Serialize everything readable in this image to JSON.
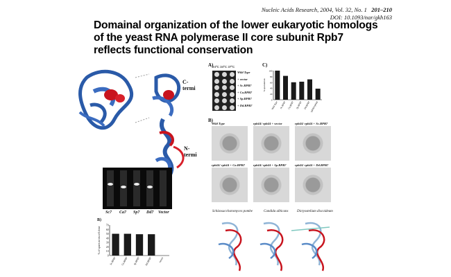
{
  "header": {
    "journal_line": "Nucleic Acids Research, 2004, Vol. 32, No. 1",
    "pages": "201–210",
    "doi": "DOI: 10.1093/nar/gkh163"
  },
  "title": "Domainal organization of the lower eukaryotic homologs of the yeast RNA polymerase II core subunit Rpb7 reflects functional conservation",
  "structure_panel": {
    "c_term": "C-termi",
    "n_term": "N-termi"
  },
  "panel_a": {
    "label": "A)",
    "temps": [
      "24ºC",
      "34ºC",
      "37ºC"
    ],
    "rows": [
      "Wild Type",
      "+ vector",
      "+ Sc.RPB7",
      "+ Ca.RPB7",
      "+ Sp.RPB7",
      "+ Dd.RPB7"
    ]
  },
  "panel_c": {
    "label": "C)",
    "ylabel": "% sporulation",
    "categories": [
      "Wild Type",
      "Sc.RPB7",
      "Ca.RPB7",
      "Sp.RPB7",
      "Dd.RPB7",
      "rpb4Δ/rpb4Δ"
    ],
    "values": [
      100,
      82,
      60,
      62,
      70,
      38
    ]
  },
  "panel_b_top": {
    "label": "B)",
    "captions": [
      "Wild Type",
      "rpb4Δ/ rpb4Δ + vector",
      "rpb4Δ/ rpb4Δ + Sc.RPB7",
      "rpb4Δ/ rpb4Δ + Ca.RPB7",
      "rpb4Δ/ rpb4Δ + Sp.RPB7",
      "rpb4Δ/ rpb4Δ + Dd.RPB7"
    ]
  },
  "gel": {
    "labels": [
      "Sc7",
      "Ca7",
      "Sp7",
      "Dd7",
      "Vector"
    ]
  },
  "panel_b_bottom": {
    "label": "B)",
    "ylabel": "% of spores in ten cell clone",
    "categories": [
      "Sc.RPB7",
      "Ca.RPB7",
      "Sp.RPB7",
      "Dd.RPB7",
      "vector"
    ],
    "values": [
      50,
      50,
      49,
      49,
      0
    ]
  },
  "structures": {
    "labels": [
      "Schizosaccharomyces pombe",
      "Candida albicans",
      "Dictyostelium discoideum"
    ]
  },
  "chart_data": [
    {
      "type": "bar",
      "title": "",
      "categories": [
        "Wild Type",
        "Sc.RPB7",
        "Ca.RPB7",
        "Sp.RPB7",
        "Dd.RPB7",
        "rpb4Δ/rpb4Δ"
      ],
      "values": [
        100,
        82,
        60,
        62,
        70,
        38
      ],
      "ylabel": "% sporulation",
      "ylim": [
        0,
        100
      ]
    },
    {
      "type": "bar",
      "title": "",
      "categories": [
        "Sc.RPB7",
        "Ca.RPB7",
        "Sp.RPB7",
        "Dd.RPB7",
        "vector"
      ],
      "values": [
        50,
        50,
        49,
        49,
        0
      ],
      "ylabel": "% of spores in ten cell clone",
      "ylim": [
        0,
        70
      ]
    }
  ]
}
